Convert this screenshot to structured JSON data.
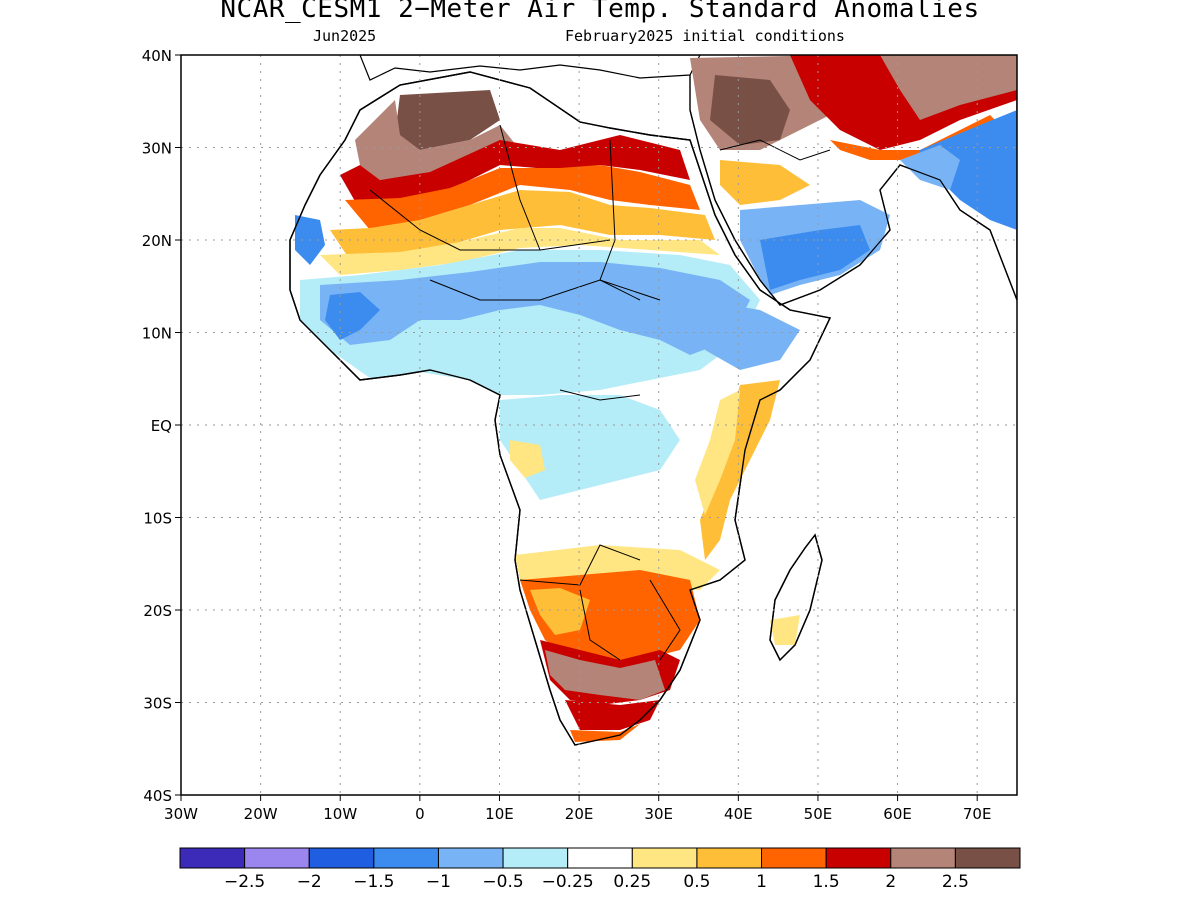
{
  "title": "NCAR_CESM1 2−Meter Air Temp. Standard Anomalies",
  "subtitle_left": "Jun2025",
  "subtitle_right": "February2025 initial conditions",
  "lat_ticks": [
    {
      "value": 40,
      "label": "40N"
    },
    {
      "value": 30,
      "label": "30N"
    },
    {
      "value": 20,
      "label": "20N"
    },
    {
      "value": 10,
      "label": "10N"
    },
    {
      "value": 0,
      "label": "EQ"
    },
    {
      "value": -10,
      "label": "10S"
    },
    {
      "value": -20,
      "label": "20S"
    },
    {
      "value": -30,
      "label": "30S"
    },
    {
      "value": -40,
      "label": "40S"
    }
  ],
  "lon_ticks": [
    {
      "value": -30,
      "label": "30W"
    },
    {
      "value": -20,
      "label": "20W"
    },
    {
      "value": -10,
      "label": "10W"
    },
    {
      "value": 0,
      "label": "0"
    },
    {
      "value": 10,
      "label": "10E"
    },
    {
      "value": 20,
      "label": "20E"
    },
    {
      "value": 30,
      "label": "30E"
    },
    {
      "value": 40,
      "label": "40E"
    },
    {
      "value": 50,
      "label": "50E"
    },
    {
      "value": 60,
      "label": "60E"
    },
    {
      "value": 70,
      "label": "70E"
    }
  ],
  "extent": {
    "lon_min": -30,
    "lon_max": 75,
    "lat_min": -40,
    "lat_max": 40
  },
  "colorbar": {
    "colors": [
      "#3c2ab8",
      "#9b86f0",
      "#1f5ee0",
      "#3c8cf0",
      "#78b4f5",
      "#b4ecf7",
      "#ffffff",
      "#ffe682",
      "#ffbe37",
      "#ff6400",
      "#c80000",
      "#b48478",
      "#785046"
    ],
    "labels": [
      "−2.5",
      "−2",
      "−1.5",
      "−1",
      "−0.5",
      "−0.25",
      "0.25",
      "0.5",
      "1",
      "1.5",
      "2",
      "2.5"
    ]
  }
}
